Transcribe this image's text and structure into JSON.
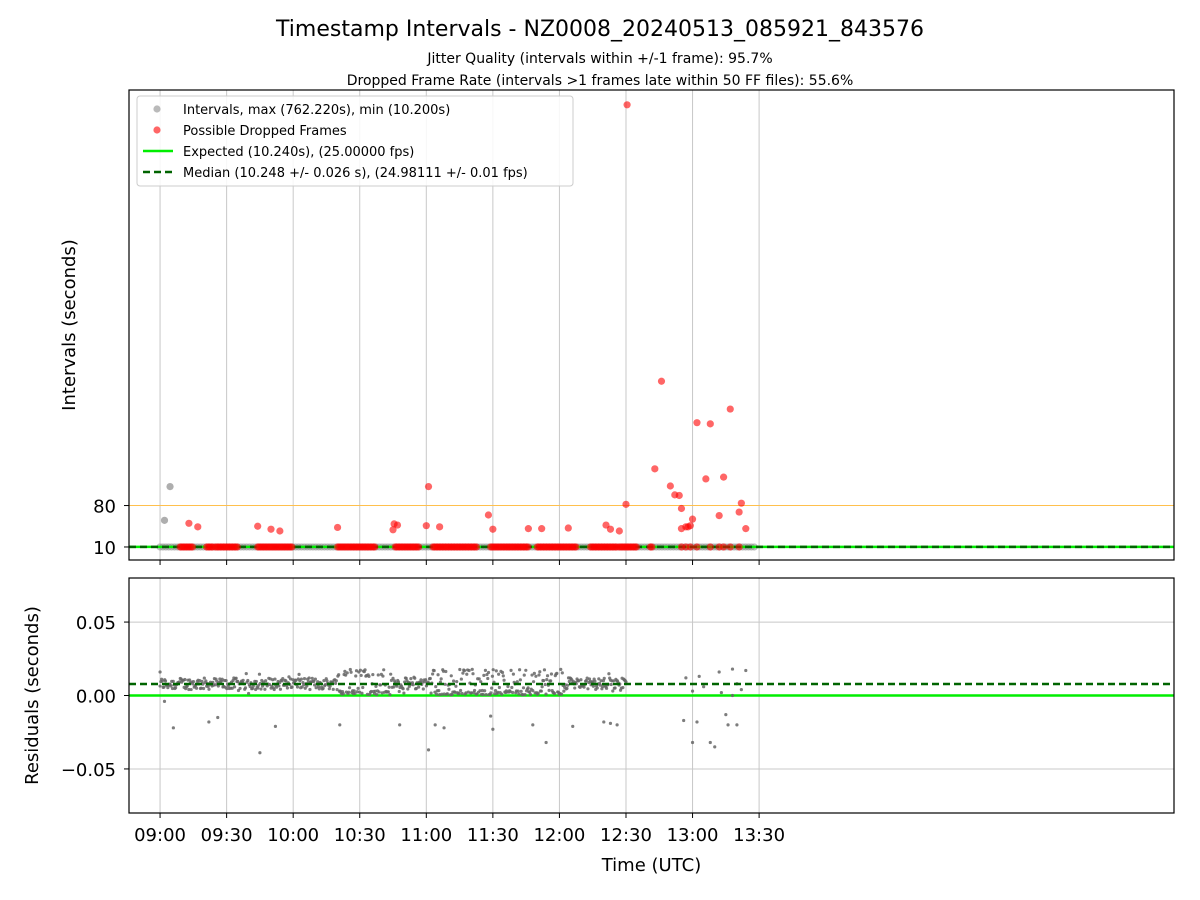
{
  "title": "Timestamp Intervals - NZ0008_20240513_085921_843576",
  "subtitle1": "Jitter Quality (intervals within +/-1 frame): 95.7%",
  "subtitle2": "Dropped Frame Rate (intervals >1 frames late within 50 FF files): 55.6%",
  "colors": {
    "interval": "#8c8c8c",
    "dropped": "#ff0000",
    "expected": "#00ee00",
    "median": "#006400",
    "threshold": "#ffc04d",
    "residual": "#666666",
    "grid": "#c8c8c8"
  },
  "chart_data": [
    {
      "type": "scatter",
      "panel": "top",
      "xlabel": "",
      "ylabel": "Intervals (seconds)",
      "x_unit": "minutes since 09:00 UTC",
      "xlim": [
        -14,
        457
      ],
      "ylim": [
        -12,
        782
      ],
      "yticks": [
        10,
        80
      ],
      "ytick_labels": [
        "10",
        "80"
      ],
      "xticks": [
        0,
        30,
        60,
        90,
        120,
        150,
        180,
        210,
        240,
        270
      ],
      "xtick_labels": [
        "09:00",
        "09:30",
        "10:00",
        "10:30",
        "11:00",
        "11:30",
        "12:00",
        "12:30",
        "13:00",
        "13:30"
      ],
      "grid": true,
      "legend_position": "top-left",
      "legend": [
        {
          "label": "Intervals, max (762.220s), min (10.200s)",
          "kind": "marker",
          "color": "#8c8c8c"
        },
        {
          "label": "Possible Dropped Frames",
          "kind": "marker",
          "color": "#ff0000"
        },
        {
          "label": "Expected (10.240s), (25.00000 fps)",
          "kind": "line",
          "color": "#00ee00"
        },
        {
          "label": "Median (10.248 +/- 0.026 s), (24.98111 +/- 0.01 fps)",
          "kind": "dashed",
          "color": "#006400"
        }
      ],
      "reference_lines": {
        "threshold": 80,
        "expected": 10.24,
        "median": 10.248
      },
      "dropped_runs": [
        [
          9,
          15
        ],
        [
          21,
          24
        ],
        [
          25,
          35
        ],
        [
          44,
          60
        ],
        [
          80,
          97
        ],
        [
          106,
          117
        ],
        [
          123,
          143
        ],
        [
          149,
          166
        ],
        [
          170,
          188
        ],
        [
          194,
          206
        ],
        [
          207,
          215
        ],
        [
          221,
          222
        ]
      ],
      "interval_points": [
        {
          "x": 2,
          "y": 55
        },
        {
          "x": 4.5,
          "y": 112
        }
      ],
      "dropped_points": [
        {
          "x": 13,
          "y": 50
        },
        {
          "x": 17,
          "y": 44
        },
        {
          "x": 44,
          "y": 45
        },
        {
          "x": 50,
          "y": 40
        },
        {
          "x": 54,
          "y": 37
        },
        {
          "x": 80,
          "y": 43
        },
        {
          "x": 105,
          "y": 39
        },
        {
          "x": 105.5,
          "y": 49
        },
        {
          "x": 107,
          "y": 47
        },
        {
          "x": 120,
          "y": 46
        },
        {
          "x": 121,
          "y": 112
        },
        {
          "x": 126,
          "y": 44
        },
        {
          "x": 148,
          "y": 64
        },
        {
          "x": 150,
          "y": 40
        },
        {
          "x": 166,
          "y": 41
        },
        {
          "x": 172,
          "y": 41
        },
        {
          "x": 184,
          "y": 42
        },
        {
          "x": 201,
          "y": 47
        },
        {
          "x": 203,
          "y": 40
        },
        {
          "x": 207,
          "y": 37
        },
        {
          "x": 210,
          "y": 82
        },
        {
          "x": 210.5,
          "y": 757
        },
        {
          "x": 223,
          "y": 142
        },
        {
          "x": 226,
          "y": 290
        },
        {
          "x": 230,
          "y": 113
        },
        {
          "x": 232,
          "y": 98
        },
        {
          "x": 234,
          "y": 97
        },
        {
          "x": 235,
          "y": 75
        },
        {
          "x": 235,
          "y": 41
        },
        {
          "x": 237,
          "y": 44
        },
        {
          "x": 238,
          "y": 44
        },
        {
          "x": 239,
          "y": 46
        },
        {
          "x": 240,
          "y": 57
        },
        {
          "x": 242,
          "y": 220
        },
        {
          "x": 246,
          "y": 125
        },
        {
          "x": 248,
          "y": 218
        },
        {
          "x": 252,
          "y": 63
        },
        {
          "x": 254,
          "y": 128
        },
        {
          "x": 257,
          "y": 243
        },
        {
          "x": 261,
          "y": 69
        },
        {
          "x": 262,
          "y": 84
        },
        {
          "x": 264,
          "y": 41
        },
        {
          "x": 235,
          "y": 10
        },
        {
          "x": 237,
          "y": 10
        },
        {
          "x": 239,
          "y": 10
        },
        {
          "x": 242,
          "y": 10
        },
        {
          "x": 248,
          "y": 10
        },
        {
          "x": 252,
          "y": 10
        },
        {
          "x": 254,
          "y": 10
        },
        {
          "x": 257,
          "y": 10
        },
        {
          "x": 261,
          "y": 10
        }
      ]
    },
    {
      "type": "scatter",
      "panel": "bottom",
      "xlabel": "Time (UTC)",
      "ylabel": "Residuals (seconds)",
      "x_unit": "minutes since 09:00 UTC",
      "xlim": [
        -14,
        457
      ],
      "ylim": [
        -0.08,
        0.08
      ],
      "yticks": [
        -0.05,
        0,
        0.05
      ],
      "ytick_labels": [
        "−0.05",
        "0.00",
        "0.05"
      ],
      "xticks": [
        0,
        30,
        60,
        90,
        120,
        150,
        180,
        210,
        240,
        270
      ],
      "xtick_labels": [
        "09:00",
        "09:30",
        "10:00",
        "10:30",
        "11:00",
        "11:30",
        "12:00",
        "12:30",
        "13:00",
        "13:30"
      ],
      "grid": true,
      "reference_lines": {
        "expected": 0,
        "median": 0.0078
      },
      "dense_band": {
        "x_range": [
          0,
          210
        ],
        "y_center": 0.008
      },
      "high_clusters": [
        [
          80,
          104
        ],
        [
          122,
          172
        ],
        [
          173,
          182
        ]
      ],
      "outliers": [
        {
          "x": 0,
          "y": 0.016
        },
        {
          "x": 2,
          "y": -0.004
        },
        {
          "x": 6,
          "y": -0.022
        },
        {
          "x": 22,
          "y": -0.018
        },
        {
          "x": 26,
          "y": -0.015
        },
        {
          "x": 45,
          "y": -0.039
        },
        {
          "x": 52,
          "y": -0.021
        },
        {
          "x": 81,
          "y": -0.02
        },
        {
          "x": 108,
          "y": -0.02
        },
        {
          "x": 121,
          "y": -0.037
        },
        {
          "x": 124,
          "y": -0.02
        },
        {
          "x": 128,
          "y": -0.022
        },
        {
          "x": 149,
          "y": -0.014
        },
        {
          "x": 150,
          "y": -0.023
        },
        {
          "x": 168,
          "y": -0.02
        },
        {
          "x": 174,
          "y": -0.032
        },
        {
          "x": 186,
          "y": -0.021
        },
        {
          "x": 200,
          "y": -0.018
        },
        {
          "x": 203,
          "y": -0.019
        },
        {
          "x": 206,
          "y": -0.02
        },
        {
          "x": 236,
          "y": -0.017
        },
        {
          "x": 240,
          "y": -0.032
        },
        {
          "x": 242,
          "y": -0.018
        },
        {
          "x": 248,
          "y": -0.032
        },
        {
          "x": 250,
          "y": -0.035
        },
        {
          "x": 255,
          "y": -0.013
        },
        {
          "x": 256,
          "y": -0.02
        },
        {
          "x": 260,
          "y": -0.02
        },
        {
          "x": 264,
          "y": 0.017
        },
        {
          "x": 258,
          "y": 0.018
        },
        {
          "x": 252,
          "y": 0.016
        },
        {
          "x": 237,
          "y": 0.012
        },
        {
          "x": 243,
          "y": 0.013
        },
        {
          "x": 262,
          "y": 0.004
        },
        {
          "x": 253,
          "y": 0.002
        },
        {
          "x": 258,
          "y": 0.0
        },
        {
          "x": 240,
          "y": 0.003
        },
        {
          "x": 245,
          "y": 0.006
        },
        {
          "x": 260,
          "y": 0.008
        }
      ]
    }
  ]
}
